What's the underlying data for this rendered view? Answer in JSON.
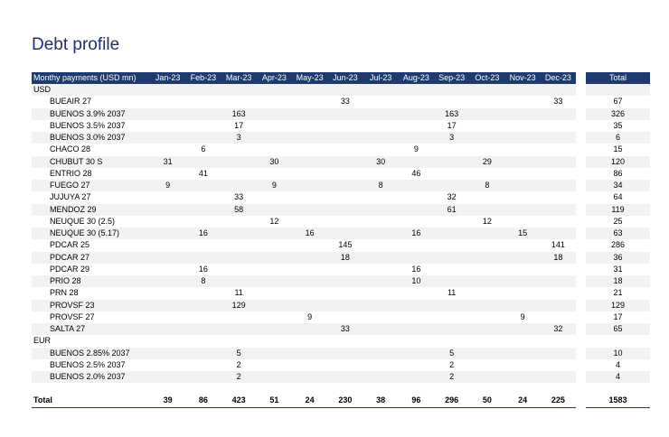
{
  "title": "Debt profile",
  "headers": [
    "Monthy payments (USD mn)",
    "Jan-23",
    "Feb-23",
    "Mar-23",
    "Apr-23",
    "May-23",
    "Jun-23",
    "Jul-23",
    "Aug-23",
    "Sep-23",
    "Oct-23",
    "Nov-23",
    "Dec-23"
  ],
  "total_header": "Total",
  "rows": [
    {
      "type": "currency",
      "label": "USD",
      "cells": [
        "",
        "",
        "",
        "",
        "",
        "",
        "",
        "",
        "",
        "",
        "",
        ""
      ],
      "total": ""
    },
    {
      "type": "bond",
      "label": "BUEAIR 27",
      "cells": [
        "",
        "",
        "",
        "",
        "",
        "33",
        "",
        "",
        "",
        "",
        "",
        "33"
      ],
      "total": "67"
    },
    {
      "type": "bond",
      "label": "BUENOS 3.9% 2037",
      "cells": [
        "",
        "",
        "163",
        "",
        "",
        "",
        "",
        "",
        "163",
        "",
        "",
        ""
      ],
      "total": "326"
    },
    {
      "type": "bond",
      "label": "BUENOS 3.5% 2037",
      "cells": [
        "",
        "",
        "17",
        "",
        "",
        "",
        "",
        "",
        "17",
        "",
        "",
        ""
      ],
      "total": "35"
    },
    {
      "type": "bond",
      "label": "BUENOS 3.0% 2037",
      "cells": [
        "",
        "",
        "3",
        "",
        "",
        "",
        "",
        "",
        "3",
        "",
        "",
        ""
      ],
      "total": "6"
    },
    {
      "type": "bond",
      "label": "CHACO 28",
      "cells": [
        "",
        "6",
        "",
        "",
        "",
        "",
        "",
        "9",
        "",
        "",
        "",
        ""
      ],
      "total": "15"
    },
    {
      "type": "bond",
      "label": "CHUBUT 30 S",
      "cells": [
        "31",
        "",
        "",
        "30",
        "",
        "",
        "30",
        "",
        "",
        "29",
        "",
        ""
      ],
      "total": "120"
    },
    {
      "type": "bond",
      "label": "ENTRIO 28",
      "cells": [
        "",
        "41",
        "",
        "",
        "",
        "",
        "",
        "46",
        "",
        "",
        "",
        ""
      ],
      "total": "86"
    },
    {
      "type": "bond",
      "label": "FUEGO 27",
      "cells": [
        "9",
        "",
        "",
        "9",
        "",
        "",
        "8",
        "",
        "",
        "8",
        "",
        ""
      ],
      "total": "34"
    },
    {
      "type": "bond",
      "label": "JUJUYA 27",
      "cells": [
        "",
        "",
        "33",
        "",
        "",
        "",
        "",
        "",
        "32",
        "",
        "",
        ""
      ],
      "total": "64"
    },
    {
      "type": "bond",
      "label": "MENDOZ 29",
      "cells": [
        "",
        "",
        "58",
        "",
        "",
        "",
        "",
        "",
        "61",
        "",
        "",
        ""
      ],
      "total": "119"
    },
    {
      "type": "bond",
      "label": "NEUQUE 30 (2.5)",
      "cells": [
        "",
        "",
        "",
        "12",
        "",
        "",
        "",
        "",
        "",
        "12",
        "",
        ""
      ],
      "total": "25"
    },
    {
      "type": "bond",
      "label": "NEUQUE 30 (5.17)",
      "cells": [
        "",
        "16",
        "",
        "",
        "16",
        "",
        "",
        "16",
        "",
        "",
        "15",
        ""
      ],
      "total": "63"
    },
    {
      "type": "bond",
      "label": "PDCAR 25",
      "cells": [
        "",
        "",
        "",
        "",
        "",
        "145",
        "",
        "",
        "",
        "",
        "",
        "141"
      ],
      "total": "286"
    },
    {
      "type": "bond",
      "label": "PDCAR 27",
      "cells": [
        "",
        "",
        "",
        "",
        "",
        "18",
        "",
        "",
        "",
        "",
        "",
        "18"
      ],
      "total": "36"
    },
    {
      "type": "bond",
      "label": "PDCAR 29",
      "cells": [
        "",
        "16",
        "",
        "",
        "",
        "",
        "",
        "16",
        "",
        "",
        "",
        ""
      ],
      "total": "31"
    },
    {
      "type": "bond",
      "label": "PRIO 28",
      "cells": [
        "",
        "8",
        "",
        "",
        "",
        "",
        "",
        "10",
        "",
        "",
        "",
        ""
      ],
      "total": "18"
    },
    {
      "type": "bond",
      "label": "PRN 28",
      "cells": [
        "",
        "",
        "11",
        "",
        "",
        "",
        "",
        "",
        "11",
        "",
        "",
        ""
      ],
      "total": "21"
    },
    {
      "type": "bond",
      "label": "PROVSF 23",
      "cells": [
        "",
        "",
        "129",
        "",
        "",
        "",
        "",
        "",
        "",
        "",
        "",
        ""
      ],
      "total": "129"
    },
    {
      "type": "bond",
      "label": "PROVSF 27",
      "cells": [
        "",
        "",
        "",
        "",
        "9",
        "",
        "",
        "",
        "",
        "",
        "9",
        ""
      ],
      "total": "17"
    },
    {
      "type": "bond",
      "label": "SALTA 27",
      "cells": [
        "",
        "",
        "",
        "",
        "",
        "33",
        "",
        "",
        "",
        "",
        "",
        "32"
      ],
      "total": "65"
    },
    {
      "type": "currency",
      "label": "EUR",
      "cells": [
        "",
        "",
        "",
        "",
        "",
        "",
        "",
        "",
        "",
        "",
        "",
        ""
      ],
      "total": ""
    },
    {
      "type": "bond",
      "label": "BUENOS 2.85% 2037",
      "cells": [
        "",
        "",
        "5",
        "",
        "",
        "",
        "",
        "",
        "5",
        "",
        "",
        ""
      ],
      "total": "10"
    },
    {
      "type": "bond",
      "label": "BUENOS 2.5% 2037",
      "cells": [
        "",
        "",
        "2",
        "",
        "",
        "",
        "",
        "",
        "2",
        "",
        "",
        ""
      ],
      "total": "4"
    },
    {
      "type": "bond",
      "label": "BUENOS 2.0% 2037",
      "cells": [
        "",
        "",
        "2",
        "",
        "",
        "",
        "",
        "",
        "2",
        "",
        "",
        ""
      ],
      "total": "4"
    },
    {
      "type": "gap",
      "label": "",
      "cells": [
        "",
        "",
        "",
        "",
        "",
        "",
        "",
        "",
        "",
        "",
        "",
        ""
      ],
      "total": ""
    },
    {
      "type": "total",
      "label": "Total",
      "cells": [
        "39",
        "86",
        "423",
        "51",
        "24",
        "230",
        "38",
        "96",
        "296",
        "50",
        "24",
        "225"
      ],
      "total": "1583"
    }
  ]
}
